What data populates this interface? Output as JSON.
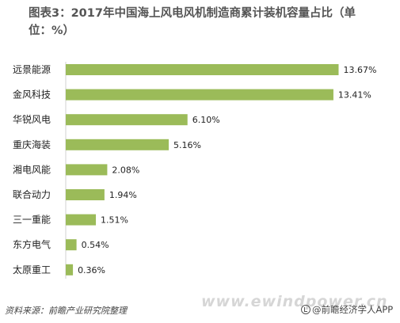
{
  "chart_data": {
    "type": "bar",
    "orientation": "horizontal",
    "title": "图表3：2017年中国海上风电风机制造商累计装机容量占比（单位：%）",
    "categories": [
      "远景能源",
      "金风科技",
      "华锐风电",
      "重庆海装",
      "湘电风能",
      "联合动力",
      "三一重能",
      "东方电气",
      "太原重工"
    ],
    "values": [
      13.67,
      13.41,
      6.1,
      5.16,
      2.08,
      1.94,
      1.51,
      0.54,
      0.36
    ],
    "value_labels": [
      "13.67%",
      "13.41%",
      "6.10%",
      "5.16%",
      "2.08%",
      "1.94%",
      "1.51%",
      "0.54%",
      "0.36%"
    ],
    "xlim": [
      0,
      15
    ],
    "grid": false,
    "legend": "none",
    "bar_color": "#9bbb59"
  },
  "footer": {
    "source": "资料来源：前瞻产业研究院整理",
    "watermark": "www.ewindpower.cn",
    "brand": "@前瞻经济学人APP",
    "brand_icon": "circle-check-icon"
  }
}
